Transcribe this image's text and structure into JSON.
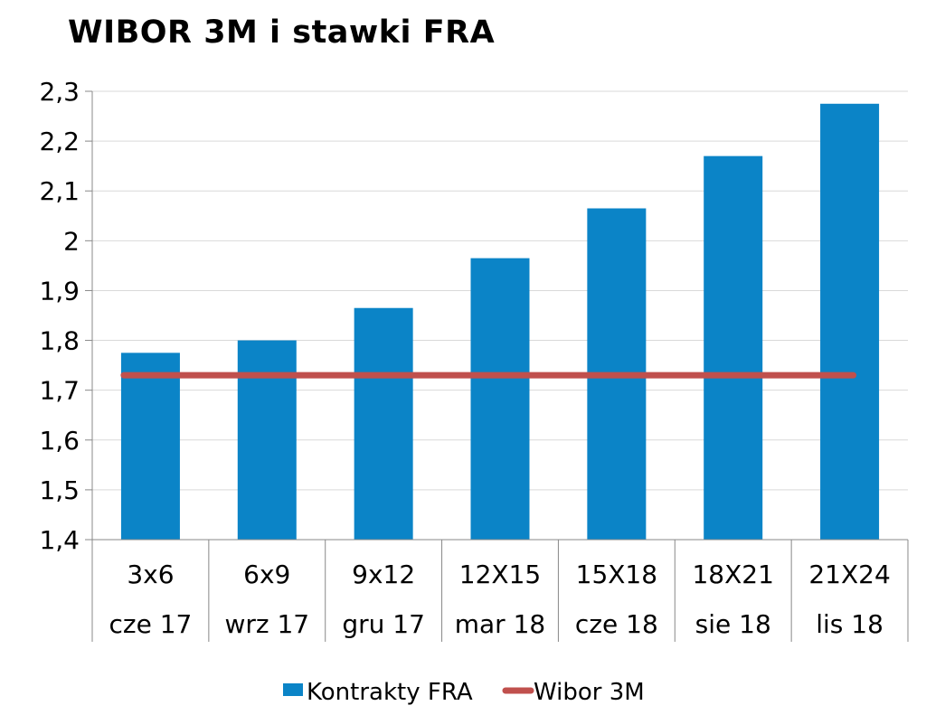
{
  "chart_data": {
    "type": "bar",
    "title": "WIBOR 3M i stawki FRA",
    "categories": [
      [
        "3x6",
        "cze 17"
      ],
      [
        "6x9",
        "wrz 17"
      ],
      [
        "9x12",
        "gru 17"
      ],
      [
        "12X15",
        "mar 18"
      ],
      [
        "15X18",
        "cze 18"
      ],
      [
        "18X21",
        "sie 18"
      ],
      [
        "21X24",
        "lis 18"
      ]
    ],
    "series": [
      {
        "name": "Kontrakty FRA",
        "type": "bar",
        "color": "#0b84c7",
        "values": [
          1.775,
          1.8,
          1.865,
          1.965,
          2.065,
          2.17,
          2.275
        ]
      },
      {
        "name": "Wibor 3M",
        "type": "line",
        "color": "#c0504d",
        "values": [
          1.73,
          1.73,
          1.73,
          1.73,
          1.73,
          1.73,
          1.73
        ]
      }
    ],
    "y_ticks": [
      "1,4",
      "1,5",
      "1,6",
      "1,7",
      "1,8",
      "1,9",
      "2",
      "2,1",
      "2,2",
      "2,3"
    ],
    "ylim": [
      1.4,
      2.3
    ],
    "grid": true,
    "legend_position": "bottom"
  }
}
